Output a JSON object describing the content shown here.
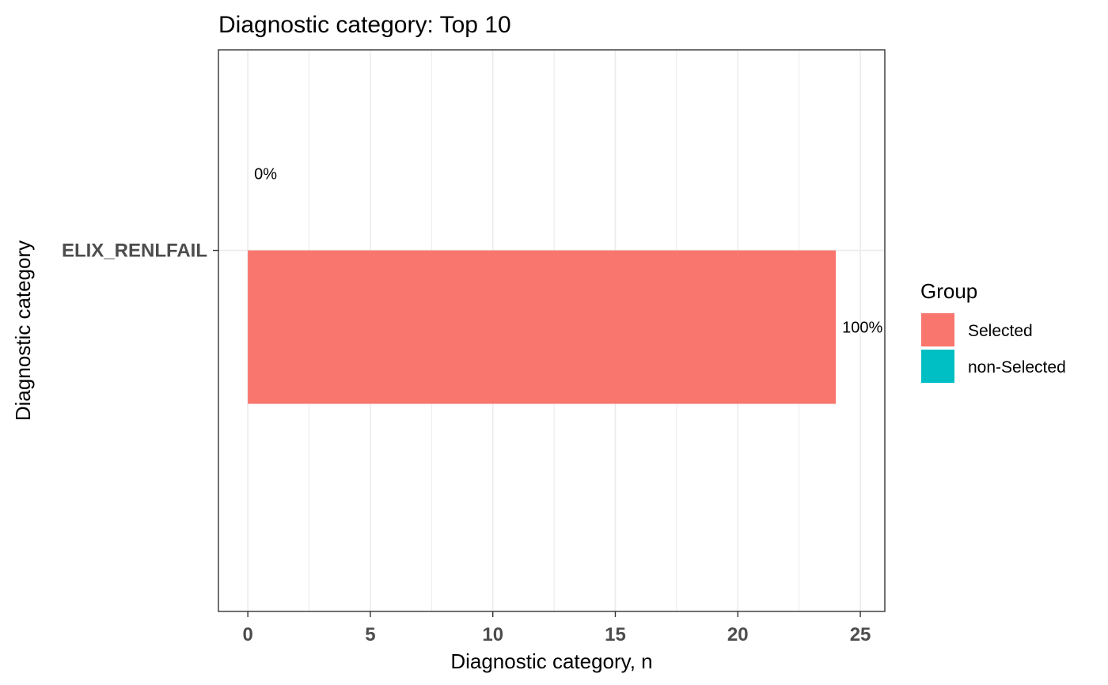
{
  "chart_data": {
    "type": "bar",
    "orientation": "horizontal",
    "position": "dodge",
    "title": "Diagnostic category: Top 10",
    "xlabel": "Diagnostic category, n",
    "ylabel": "Diagnostic category",
    "xlim": [
      -1.2,
      26
    ],
    "x_ticks": [
      0,
      5,
      10,
      15,
      20,
      25
    ],
    "x_tick_labels": [
      "0",
      "5",
      "10",
      "15",
      "20",
      "25"
    ],
    "categories": [
      "ELIX_RENLFAIL"
    ],
    "series": [
      {
        "name": "Selected",
        "values": [
          24
        ],
        "labels": [
          "100%"
        ],
        "color": "#F8766D"
      },
      {
        "name": "non-Selected",
        "values": [
          0
        ],
        "labels": [
          "0%"
        ],
        "color": "#00BFC4"
      }
    ],
    "grid": true,
    "legend": {
      "title": "Group",
      "position": "right"
    }
  },
  "colors": {
    "gridline": "#ebebeb",
    "panel_border": "#333333",
    "tick_text": "#4d4d4d"
  }
}
